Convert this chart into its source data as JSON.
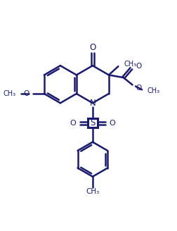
{
  "line_color": "#1a1a6e",
  "bg_color": "#ffffff",
  "line_width": 1.8,
  "figsize": [
    2.52,
    3.28
  ],
  "dpi": 100,
  "xlim": [
    0,
    10
  ],
  "ylim": [
    0,
    13
  ]
}
